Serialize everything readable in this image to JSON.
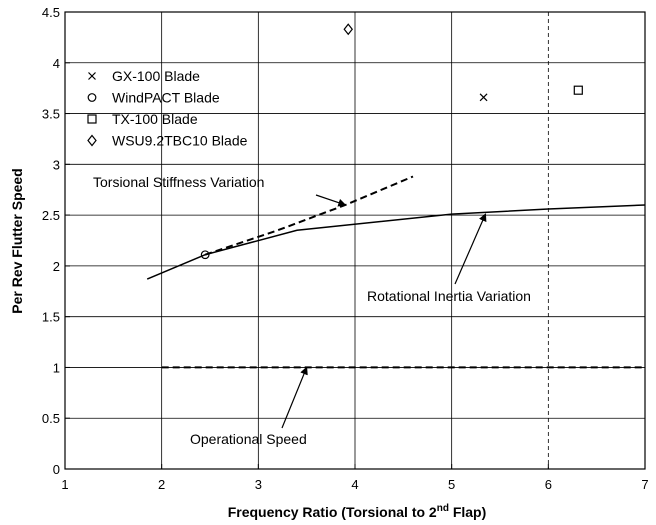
{
  "chart_data": {
    "type": "line",
    "xlabel": "Frequency Ratio (Torsional to 2",
    "xlabel_sup": "nd",
    "xlabel_tail": " Flap)",
    "ylabel": "Per Rev Flutter Speed",
    "xlim": [
      1,
      7
    ],
    "ylim": [
      0,
      4.5
    ],
    "x_ticks": [
      "1",
      "2",
      "3",
      "4",
      "5",
      "6",
      "7"
    ],
    "y_ticks": [
      "0",
      "0.5",
      "1",
      "1.5",
      "2",
      "2.5",
      "3",
      "3.5",
      "4",
      "4.5"
    ],
    "grid": true,
    "grid_note": "solid horizontal gridlines; vertical gridlines solid except dashed at x=6",
    "legend_position": "top-left",
    "points": [
      {
        "name": "GX-100 Blade",
        "marker": "x",
        "x": 5.33,
        "y": 3.66
      },
      {
        "name": "WindPACT Blade",
        "marker": "o",
        "x": 2.45,
        "y": 2.11
      },
      {
        "name": "TX-100 Blade",
        "marker": "square",
        "x": 6.31,
        "y": 3.73
      },
      {
        "name": "WSU9.2TBC10 Blade",
        "marker": "diamond",
        "x": 3.93,
        "y": 4.33
      }
    ],
    "lines": [
      {
        "label": "Rotational Inertia Variation",
        "style": "solid",
        "x": [
          1.85,
          2.45,
          3.4,
          5.0,
          6.0,
          7.0
        ],
        "y": [
          1.87,
          2.11,
          2.35,
          2.51,
          2.56,
          2.6
        ]
      },
      {
        "label": "Torsional Stiffness Variation",
        "style": "dashed",
        "x": [
          2.45,
          3.2,
          3.9,
          4.6
        ],
        "y": [
          2.11,
          2.35,
          2.6,
          2.88
        ]
      },
      {
        "label": "Operational Speed",
        "style": "dashed",
        "x": [
          2.0,
          7.0
        ],
        "y": [
          1.0,
          1.0
        ]
      }
    ],
    "annotations": [
      {
        "text": "Torsional Stiffness Variation",
        "points_to": {
          "x": 3.9,
          "y": 2.6
        }
      },
      {
        "text": "Rotational Inertia Variation",
        "points_to": {
          "x": 5.35,
          "y": 2.51
        }
      },
      {
        "text": "Operational Speed",
        "points_to": {
          "x": 3.5,
          "y": 1.0
        }
      }
    ]
  }
}
